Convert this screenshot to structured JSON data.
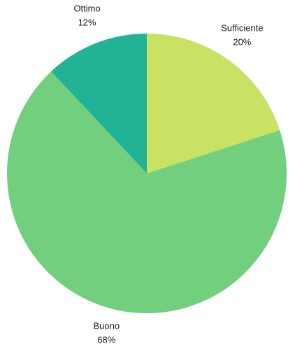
{
  "chart_data": {
    "type": "pie",
    "title": "",
    "start_angle_deg": 0,
    "direction": "clockwise",
    "slices": [
      {
        "label": "Sufficiente",
        "value": 20,
        "display": "20%",
        "color": "#cae263"
      },
      {
        "label": "Buono",
        "value": 68,
        "display": "68%",
        "color": "#72cf7e"
      },
      {
        "label": "Ottimo",
        "value": 12,
        "display": "12%",
        "color": "#22b296"
      }
    ]
  }
}
